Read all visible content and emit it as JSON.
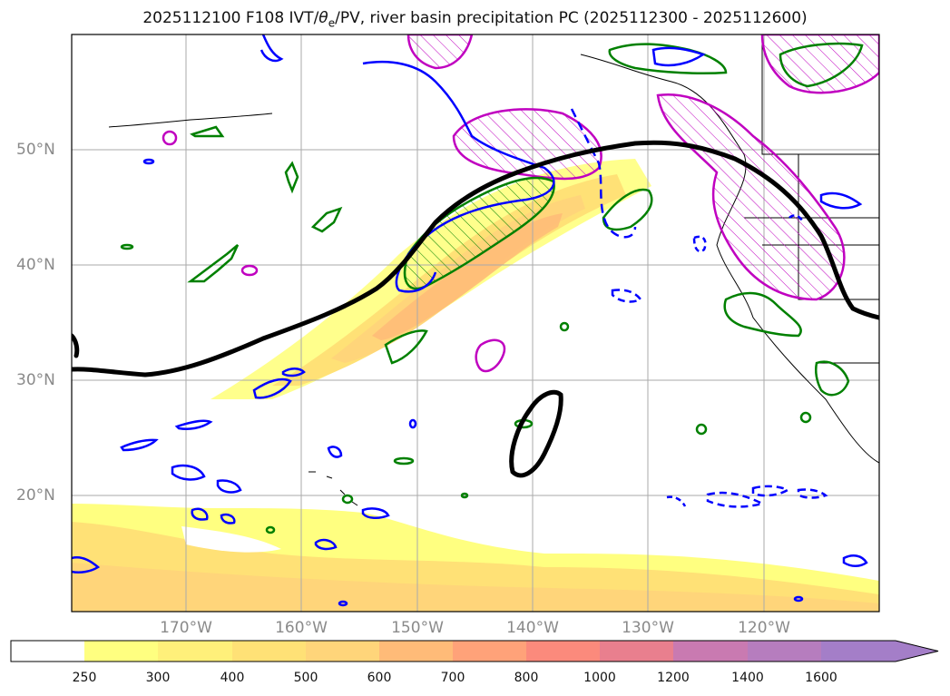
{
  "title": "2025112100 F108 IVT/θe/PV, river basin precipitation PC (2025112300 - 2025112600)",
  "title_parts": {
    "prefix": "2025112100 F108 IVT/",
    "theta": "θ",
    "theta_sub": "e",
    "suffix": "/PV, river basin precipitation PC (2025112300 - 2025112600)"
  },
  "map": {
    "lat_labels": [
      "50°N",
      "40°N",
      "30°N",
      "20°N"
    ],
    "lon_labels": [
      "170°W",
      "160°W",
      "150°W",
      "140°W",
      "130°W",
      "120°W"
    ],
    "gridlines": true
  },
  "colorbar": {
    "ticks": [
      "250",
      "300",
      "400",
      "500",
      "600",
      "700",
      "800",
      "1000",
      "1200",
      "1400",
      "1600"
    ],
    "colors": [
      "#ffffff",
      "#ffff80",
      "#fff07a",
      "#ffe176",
      "#ffd57a",
      "#ffbb78",
      "#ffa279",
      "#fb8a7c",
      "#e97f8e",
      "#c97ab1",
      "#b67dbe",
      "#a47ec8"
    ],
    "extend": "max"
  },
  "contour_colors": {
    "theta_e": "#000000",
    "pv_positive": "#0000ff",
    "precip_pc_positive": "#008000",
    "precip_pc_hatched": "#c000c0"
  }
}
